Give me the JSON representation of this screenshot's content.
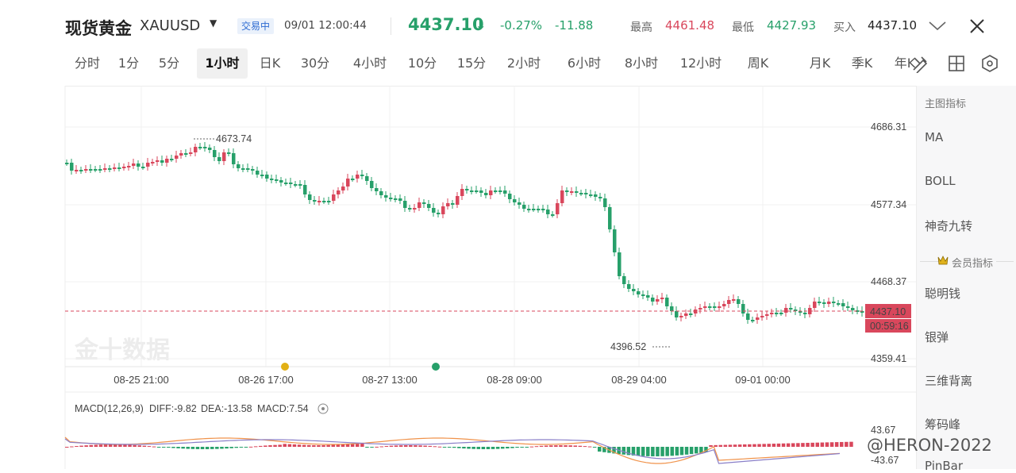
{
  "header": {
    "title": "现货黄金",
    "symbol": "XAUUSD",
    "status": "交易中",
    "datetime": "09/01 12:00:44",
    "price": "4437.10",
    "change_pct": "-0.27%",
    "change_abs": "-11.88",
    "high_label": "最高",
    "high_value": "4461.48",
    "low_label": "最低",
    "low_value": "4427.93",
    "buy_label": "买入",
    "buy_value": "4437.10"
  },
  "timeframes": [
    "分时",
    "1分",
    "5分",
    "1小时",
    "日K",
    "30分",
    "4小时",
    "10分",
    "15分",
    "2小时",
    "6小时",
    "8小时",
    "12小时",
    "周K",
    "月K",
    "季K",
    "年K"
  ],
  "active_timeframe": "1小时",
  "toolbar_icons": [
    "draw-tool-icon",
    "layout-grid-icon",
    "settings-hexagon-icon"
  ],
  "chart": {
    "y_ticks": [
      "4686.31",
      "4577.34",
      "4468.37",
      "4359.41"
    ],
    "x_ticks": [
      "08-25 21:00",
      "08-26 17:00",
      "08-27 13:00",
      "08-28 09:00",
      "08-29 04:00",
      "09-01 00:00"
    ],
    "high_annotation": "4673.74",
    "low_annotation": "4396.52",
    "last_price_label": "4437.10",
    "countdown_label": "00:59:16",
    "macd_label": "MACD(12,26,9)",
    "macd_diff": "DIFF:-9.82",
    "macd_dea": "DEA:-13.58",
    "macd_value": "MACD:7.54",
    "macd_top": "43.67",
    "macd_bottom": "-43.67",
    "watermark": "金十数据",
    "colors": {
      "up": "#d9475c",
      "down": "#27a06a",
      "diff": "#f0924a",
      "dea": "#8a7fc8",
      "macd_label": "#6fa8c8"
    }
  },
  "sidebar": {
    "title": "主图指标",
    "items": [
      "MA",
      "BOLL",
      "神奇九转"
    ],
    "vip_label": "会员指标",
    "vip_items": [
      "聪明钱",
      "银弹",
      "三维背离",
      "筹码峰",
      "PinBar"
    ]
  },
  "credit": "@HERON-2022"
}
